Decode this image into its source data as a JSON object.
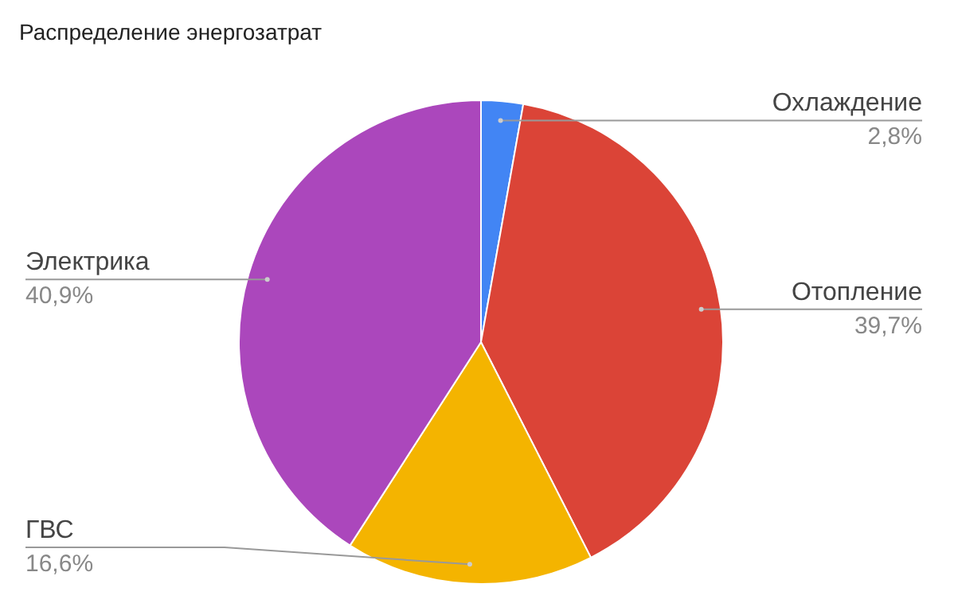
{
  "chart_data": {
    "type": "pie",
    "title": "Распределение энергозатрат",
    "categories": [
      "Охлаждение",
      "Отопление",
      "ГВС",
      "Электрика"
    ],
    "values": [
      2.8,
      39.7,
      16.6,
      40.9
    ],
    "value_labels": [
      "2,8%",
      "39,7%",
      "16,6%",
      "40,9%"
    ],
    "colors": [
      "#4285f4",
      "#db4437",
      "#f4b400",
      "#ab47bc"
    ]
  }
}
